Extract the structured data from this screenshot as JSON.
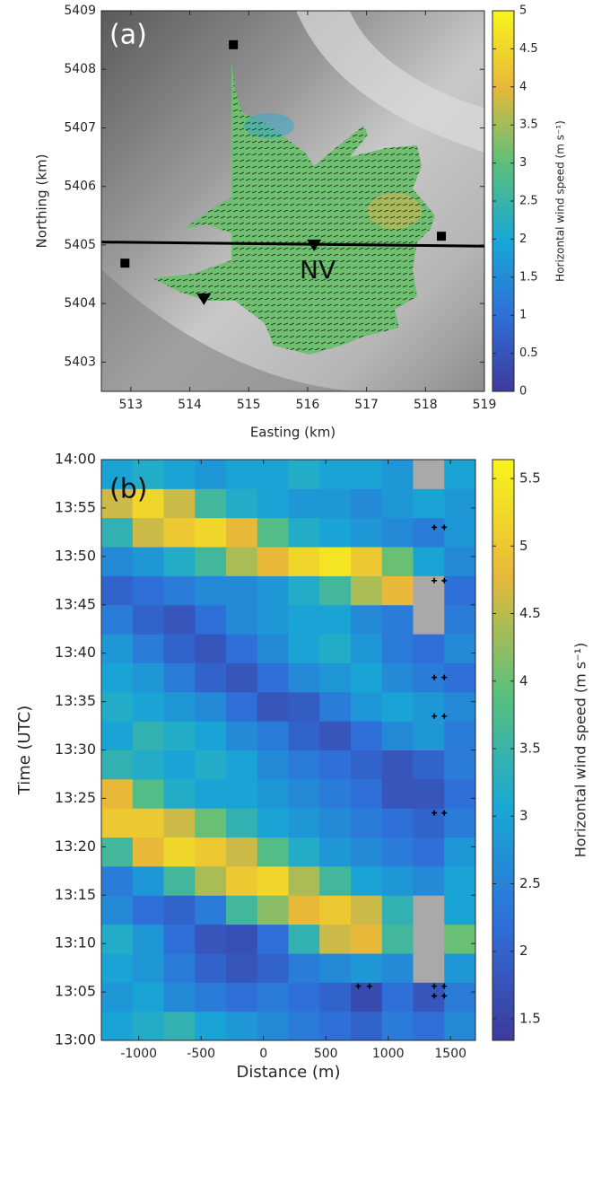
{
  "chart_data": [
    {
      "type": "vector_map",
      "panel_label": "(a)",
      "annotation": "NV",
      "x_label": "Easting (km)",
      "y_label": "Northing (km)",
      "xlim": [
        512.5,
        519
      ],
      "ylim": [
        5402.5,
        5409
      ],
      "xticks": [
        513,
        514,
        515,
        516,
        517,
        518,
        519
      ],
      "yticks": [
        5403,
        5404,
        5405,
        5406,
        5407,
        5408,
        5409
      ],
      "colorbar_label": "Horizontal wind speed (m s⁻¹)",
      "clim": [
        0,
        5
      ],
      "cticks": [
        0,
        0.5,
        1,
        1.5,
        2,
        2.5,
        3,
        3.5,
        4,
        4.5,
        5
      ],
      "colormap": [
        "#3d3a9c",
        "#2f6fd8",
        "#18a8d6",
        "#5cc07a",
        "#e8b83a",
        "#f8f51c"
      ],
      "transect": {
        "x": [
          512.5,
          519
        ],
        "y": [
          5405.05,
          5404.98
        ]
      },
      "squares": {
        "x": [
          514.74,
          512.9,
          518.27
        ],
        "y": [
          5408.42,
          5404.69,
          5405.15
        ]
      },
      "triangles": {
        "x": [
          514.24,
          516.11
        ],
        "y": [
          5404.08,
          5405.0
        ]
      }
    },
    {
      "type": "heatmap",
      "panel_label": "(b)",
      "x_label": "Distance (m)",
      "y_label": "Time (UTC)",
      "xlim": [
        -1300,
        1700
      ],
      "ylim": [
        0,
        60
      ],
      "xticks": [
        -1000,
        -500,
        0,
        500,
        1000,
        1500
      ],
      "yticks": [
        {
          "value": 0,
          "label": "13:00"
        },
        {
          "value": 5,
          "label": "13:05"
        },
        {
          "value": 10,
          "label": "13:10"
        },
        {
          "value": 15,
          "label": "13:15"
        },
        {
          "value": 20,
          "label": "13:20"
        },
        {
          "value": 25,
          "label": "13:25"
        },
        {
          "value": 30,
          "label": "13:30"
        },
        {
          "value": 35,
          "label": "13:35"
        },
        {
          "value": 40,
          "label": "13:40"
        },
        {
          "value": 45,
          "label": "13:45"
        },
        {
          "value": 50,
          "label": "13:50"
        },
        {
          "value": 55,
          "label": "13:55"
        },
        {
          "value": 60,
          "label": "14:00"
        }
      ],
      "colorbar_label": "Horizontal wind speed (m s⁻¹)",
      "clim": [
        1.34,
        5.64
      ],
      "cticks": [
        1.5,
        2,
        2.5,
        3,
        3.5,
        4,
        4.5,
        5,
        5.5
      ],
      "colormap": [
        "#3d3a9c",
        "#2f6fd8",
        "#18a8d6",
        "#5cc07a",
        "#e8b83a",
        "#f8f51c"
      ],
      "missing_color": "#a9a9a9",
      "xbins": [
        -1300,
        -1050,
        -800,
        -550,
        -300,
        -50,
        200,
        450,
        700,
        950,
        1200,
        1450,
        1700
      ],
      "ybins": [
        0,
        3,
        6,
        9,
        12,
        15,
        18,
        21,
        24,
        27,
        30,
        33,
        36,
        39,
        42,
        45,
        48,
        51,
        54,
        57,
        60
      ],
      "values": [
        [
          3.0,
          3.2,
          3.4,
          3.0,
          2.8,
          2.6,
          2.4,
          2.2,
          2.0,
          2.4,
          2.2,
          2.6
        ],
        [
          2.8,
          3.0,
          2.6,
          2.4,
          2.2,
          2.4,
          2.2,
          2.0,
          1.6,
          2.2,
          1.8,
          2.4
        ],
        [
          3.0,
          2.8,
          2.4,
          2.0,
          1.8,
          2.0,
          2.4,
          2.6,
          2.8,
          2.6,
          null,
          2.8
        ],
        [
          3.2,
          2.8,
          2.2,
          1.8,
          1.7,
          2.2,
          3.4,
          4.6,
          4.8,
          3.6,
          null,
          4.0
        ],
        [
          2.6,
          2.2,
          2.0,
          2.4,
          3.6,
          4.2,
          4.8,
          5.0,
          4.6,
          3.4,
          null,
          3.0
        ],
        [
          2.4,
          2.8,
          3.6,
          4.4,
          5.0,
          5.2,
          4.4,
          3.6,
          3.0,
          2.8,
          2.6,
          3.0
        ],
        [
          3.6,
          4.8,
          5.2,
          5.0,
          4.6,
          3.8,
          3.2,
          2.8,
          2.6,
          2.4,
          2.2,
          2.8
        ],
        [
          5.0,
          5.0,
          4.6,
          4.0,
          3.4,
          3.0,
          2.8,
          2.6,
          2.4,
          2.2,
          2.0,
          2.4
        ],
        [
          4.8,
          3.8,
          3.2,
          3.0,
          3.0,
          2.8,
          2.6,
          2.4,
          2.2,
          1.8,
          1.8,
          2.2
        ],
        [
          3.4,
          3.2,
          3.0,
          3.2,
          3.0,
          2.6,
          2.4,
          2.2,
          2.0,
          1.8,
          2.0,
          2.4
        ],
        [
          3.0,
          3.4,
          3.2,
          3.0,
          2.6,
          2.4,
          2.0,
          1.8,
          2.2,
          2.6,
          2.8,
          2.4
        ],
        [
          3.2,
          3.0,
          2.8,
          2.6,
          2.2,
          1.8,
          1.9,
          2.4,
          2.8,
          3.0,
          2.8,
          2.6
        ],
        [
          3.0,
          2.8,
          2.4,
          2.0,
          1.8,
          2.2,
          2.6,
          2.8,
          3.0,
          2.6,
          2.4,
          2.2
        ],
        [
          2.8,
          2.4,
          2.0,
          1.8,
          2.2,
          2.6,
          3.0,
          3.2,
          2.8,
          2.4,
          2.2,
          2.6
        ],
        [
          2.4,
          2.0,
          1.8,
          2.2,
          2.6,
          2.8,
          3.0,
          3.0,
          2.6,
          2.4,
          null,
          2.4
        ],
        [
          2.0,
          2.2,
          2.4,
          2.6,
          2.6,
          2.8,
          3.2,
          3.6,
          4.4,
          4.8,
          null,
          2.2
        ],
        [
          2.6,
          2.8,
          3.2,
          3.6,
          4.4,
          4.8,
          5.2,
          5.4,
          5.0,
          4.0,
          3.0,
          2.6
        ],
        [
          3.4,
          4.6,
          5.0,
          5.2,
          4.8,
          3.8,
          3.2,
          3.0,
          2.8,
          2.6,
          2.4,
          2.8
        ],
        [
          4.6,
          5.2,
          4.6,
          3.6,
          3.2,
          3.0,
          2.8,
          2.8,
          2.6,
          2.8,
          3.0,
          2.8
        ],
        [
          3.0,
          3.2,
          3.0,
          2.8,
          3.0,
          3.0,
          3.2,
          3.0,
          3.0,
          2.8,
          null,
          3.0
        ]
      ],
      "plus_markers": {
        "x": [
          1370,
          1450,
          1370,
          1450,
          1370,
          1450,
          1370,
          1450,
          1370,
          1450,
          760,
          850,
          1370,
          1450,
          1370,
          1450
        ],
        "y": [
          53,
          53,
          47.5,
          47.5,
          37.5,
          37.5,
          33.5,
          33.5,
          23.5,
          23.5,
          5.6,
          5.6,
          5.6,
          5.6,
          4.6,
          4.6
        ]
      }
    }
  ]
}
